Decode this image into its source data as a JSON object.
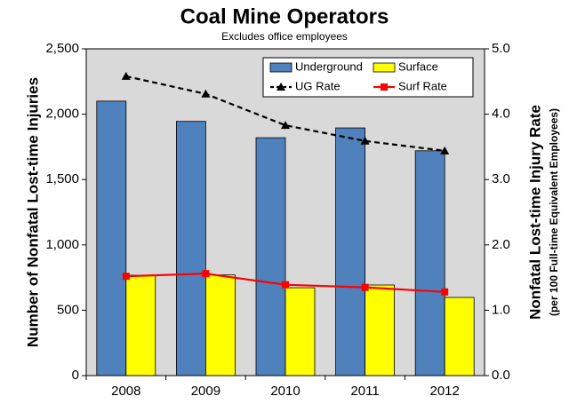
{
  "chart_data": {
    "type": "bar_line",
    "title": "Coal Mine Operators",
    "subtitle": "Excludes office employees",
    "y_label": "Number of Nonfatal Lost-time Injuries",
    "y2_label": "Nonfatal Lost-time Injury Rate",
    "y2_sublabel": "(per 100 Full-time Equivalent Employees)",
    "categories": [
      "2008",
      "2009",
      "2010",
      "2011",
      "2012"
    ],
    "series": [
      {
        "name": "Underground",
        "kind": "bar",
        "color": "#4f81bd",
        "values": [
          2100,
          1945,
          1820,
          1895,
          1720
        ]
      },
      {
        "name": "Surface",
        "kind": "bar",
        "color": "#ffff00",
        "values": [
          768,
          770,
          672,
          693,
          598
        ]
      },
      {
        "name": "UG Rate",
        "kind": "line",
        "axis": "y2",
        "color": "#000000",
        "dashed": true,
        "marker": "triangle",
        "values": [
          4.58,
          4.31,
          3.83,
          3.59,
          3.44
        ]
      },
      {
        "name": "Surf Rate",
        "kind": "line",
        "axis": "y2",
        "color": "#ff0000",
        "dashed": false,
        "marker": "square",
        "values": [
          1.52,
          1.56,
          1.39,
          1.35,
          1.28
        ]
      }
    ],
    "ylim": [
      0,
      2500
    ],
    "yticks": [
      0,
      500,
      {
        "value": 1000,
        "label": "1,000"
      },
      {
        "value": 1500,
        "label": "1,500"
      },
      {
        "value": 2000,
        "label": "2,000"
      },
      {
        "value": 2500,
        "label": "2,500"
      }
    ],
    "y2lim": [
      0,
      5
    ],
    "y2ticks": [
      {
        "value": 0,
        "label": "0.0"
      },
      {
        "value": 1,
        "label": "1.0"
      },
      {
        "value": 2,
        "label": "2.0"
      },
      {
        "value": 3,
        "label": "3.0"
      },
      {
        "value": 4,
        "label": "4.0"
      },
      {
        "value": 5,
        "label": "5.0"
      }
    ],
    "plot_background": "#d9d9d9",
    "legend": "top-right"
  }
}
